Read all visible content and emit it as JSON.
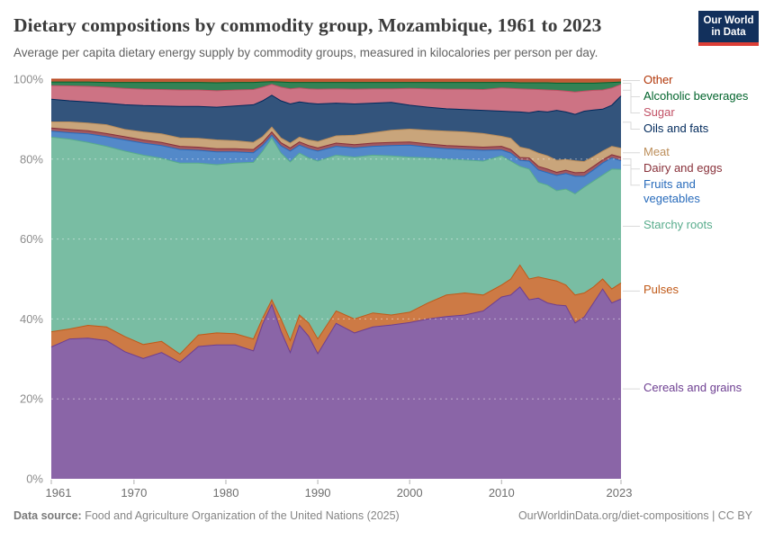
{
  "header": {
    "title": "Dietary compositions by commodity group, Mozambique, 1961 to 2023",
    "subtitle": "Average per capita dietary energy supply by commodity groups, measured in kilocalories per person per day."
  },
  "logo": {
    "line1": "Our World",
    "line2": "in Data",
    "bg_color": "#12305c",
    "bar_color": "#dc3e36"
  },
  "chart_data": {
    "type": "area",
    "stacked": true,
    "normalized_to_percent": true,
    "title": "Dietary compositions by commodity group, Mozambique, 1961 to 2023",
    "xlabel": "",
    "ylabel": "",
    "x": [
      1961,
      1963,
      1965,
      1967,
      1969,
      1971,
      1973,
      1975,
      1977,
      1979,
      1981,
      1983,
      1984,
      1985,
      1986,
      1987,
      1988,
      1989,
      1990,
      1992,
      1994,
      1996,
      1998,
      2000,
      2002,
      2004,
      2006,
      2008,
      2010,
      2011,
      2012,
      2013,
      2014,
      2015,
      2016,
      2017,
      2018,
      2019,
      2020,
      2021,
      2022,
      2023
    ],
    "series": [
      {
        "id": "cereals-and-grains",
        "label": "Cereals and grains",
        "color": "#6d3e91",
        "values": [
          33.0,
          35.0,
          35.2,
          34.6,
          31.8,
          30.1,
          31.6,
          29.1,
          33.1,
          33.5,
          33.5,
          32.0,
          38.7,
          43.6,
          36.9,
          31.6,
          38.4,
          35.7,
          31.3,
          38.9,
          36.5,
          38.0,
          38.5,
          39.1,
          40.0,
          40.6,
          41.0,
          42.0,
          45.5,
          46.0,
          48.0,
          44.8,
          45.2,
          44.0,
          43.5,
          43.3,
          39.0,
          40.5,
          44.0,
          47.5,
          44.0,
          45.0
        ]
      },
      {
        "id": "pulses",
        "label": "Pulses",
        "color": "#c05917",
        "values": [
          3.8,
          2.5,
          3.2,
          3.4,
          3.8,
          3.5,
          2.8,
          2.1,
          2.9,
          3.0,
          2.8,
          3.0,
          1.5,
          1.2,
          3.1,
          3.0,
          2.6,
          3.3,
          3.7,
          3.1,
          3.5,
          3.5,
          2.5,
          2.6,
          4.0,
          5.4,
          5.5,
          4.0,
          3.0,
          4.0,
          5.5,
          5.2,
          5.3,
          6.0,
          6.0,
          5.2,
          7.0,
          6.0,
          4.0,
          2.5,
          3.5,
          4.0
        ]
      },
      {
        "id": "starchy-roots",
        "label": "Starchy roots",
        "color": "#58ac8c",
        "values": [
          48.7,
          47.5,
          45.8,
          45.2,
          46.4,
          47.4,
          45.8,
          47.8,
          43.0,
          42.1,
          42.7,
          44.2,
          41.8,
          40.5,
          41.5,
          44.7,
          40.5,
          41.3,
          44.5,
          39.0,
          40.5,
          39.5,
          39.8,
          38.8,
          36.3,
          34.0,
          33.3,
          33.5,
          32.3,
          29.5,
          24.7,
          27.5,
          23.7,
          23.5,
          22.6,
          24.0,
          25.3,
          26.5,
          26.5,
          26.0,
          30.0,
          28.4
        ]
      },
      {
        "id": "fruits-and-vegetables",
        "label": "Fruits and vegetables",
        "color": "#286bbb",
        "values": [
          1.5,
          1.6,
          2.1,
          2.4,
          2.8,
          3.0,
          3.2,
          3.4,
          3.2,
          3.2,
          2.8,
          2.4,
          1.4,
          0.7,
          1.8,
          2.7,
          2.0,
          2.3,
          2.5,
          2.2,
          2.3,
          2.2,
          2.6,
          3.0,
          2.7,
          2.6,
          2.6,
          2.7,
          1.5,
          2.0,
          1.5,
          2.0,
          3.1,
          3.1,
          3.8,
          3.9,
          4.4,
          2.7,
          2.8,
          3.0,
          2.8,
          2.2
        ]
      },
      {
        "id": "dairy-and-eggs",
        "label": "Dairy and eggs",
        "color": "#883039",
        "values": [
          0.8,
          0.8,
          0.8,
          0.8,
          0.8,
          0.8,
          0.8,
          0.8,
          0.8,
          0.8,
          0.8,
          0.8,
          0.8,
          0.8,
          0.8,
          0.8,
          0.8,
          0.8,
          0.8,
          0.8,
          0.8,
          0.8,
          0.8,
          0.8,
          0.8,
          0.8,
          0.8,
          0.8,
          0.9,
          0.9,
          0.7,
          0.8,
          0.9,
          0.9,
          0.8,
          0.8,
          0.9,
          1.0,
          0.9,
          0.8,
          0.8,
          0.9
        ]
      },
      {
        "id": "meat",
        "label": "Meat",
        "color": "#bc8e5a",
        "values": [
          1.5,
          1.9,
          1.9,
          2.2,
          1.8,
          2.0,
          2.1,
          2.1,
          2.2,
          2.2,
          2.0,
          1.8,
          1.4,
          1.2,
          1.2,
          1.2,
          1.2,
          1.4,
          1.6,
          1.8,
          2.4,
          2.6,
          3.0,
          3.2,
          3.4,
          3.6,
          3.6,
          3.4,
          2.5,
          2.8,
          2.6,
          2.2,
          3.3,
          3.3,
          3.0,
          2.7,
          3.0,
          2.7,
          2.4,
          2.2,
          2.1,
          2.2
        ]
      },
      {
        "id": "oils-and-fats",
        "label": "Oils and fats",
        "color": "#00295b",
        "values": [
          5.7,
          5.3,
          5.3,
          5.4,
          6.2,
          6.6,
          7.0,
          7.9,
          8.0,
          8.2,
          8.7,
          9.4,
          9.0,
          8.0,
          9.3,
          9.8,
          8.8,
          9.2,
          9.4,
          8.2,
          7.8,
          7.4,
          7.0,
          6.0,
          5.8,
          5.6,
          5.6,
          5.8,
          6.3,
          6.7,
          8.8,
          9.1,
          10.5,
          11.0,
          12.5,
          11.9,
          11.6,
          12.6,
          11.7,
          10.5,
          10.3,
          13.1
        ]
      },
      {
        "id": "sugar",
        "label": "Sugar",
        "color": "#c15065",
        "values": [
          3.4,
          3.7,
          3.9,
          4.0,
          4.1,
          4.1,
          4.1,
          4.1,
          4.1,
          4.1,
          4.0,
          3.8,
          3.4,
          2.7,
          3.4,
          3.8,
          3.5,
          3.6,
          3.7,
          3.6,
          3.7,
          3.6,
          3.4,
          4.2,
          4.6,
          4.9,
          5.1,
          5.2,
          5.8,
          5.8,
          5.8,
          5.9,
          5.4,
          5.5,
          5.0,
          5.2,
          5.6,
          5.0,
          4.9,
          4.8,
          4.3,
          2.9
        ]
      },
      {
        "id": "alcoholic-beverages",
        "label": "Alcoholic beverages",
        "color": "#00632b",
        "values": [
          0.9,
          1.0,
          1.1,
          1.2,
          1.5,
          1.7,
          1.8,
          1.9,
          1.9,
          2.0,
          1.9,
          1.8,
          1.3,
          0.7,
          1.3,
          1.6,
          1.4,
          1.6,
          1.7,
          1.6,
          1.7,
          1.6,
          1.6,
          1.5,
          1.6,
          1.7,
          1.7,
          1.8,
          1.4,
          1.5,
          1.5,
          1.6,
          1.7,
          1.8,
          1.8,
          2.0,
          2.2,
          2.0,
          1.8,
          1.8,
          1.4,
          0.6
        ]
      },
      {
        "id": "other",
        "label": "Other",
        "color": "#b13507",
        "values": [
          0.7,
          0.7,
          0.7,
          0.8,
          0.8,
          0.8,
          0.8,
          0.8,
          0.8,
          0.9,
          0.8,
          0.8,
          0.7,
          0.6,
          0.7,
          0.8,
          0.8,
          0.8,
          0.8,
          0.8,
          0.8,
          0.8,
          0.8,
          0.8,
          0.8,
          0.8,
          0.8,
          0.8,
          0.8,
          0.8,
          0.9,
          0.9,
          0.9,
          0.9,
          1.0,
          1.0,
          1.0,
          1.0,
          1.0,
          0.9,
          0.8,
          0.7
        ]
      }
    ],
    "y_axis": {
      "ticks": [
        0,
        20,
        40,
        60,
        80,
        100
      ],
      "tick_labels": [
        "0%",
        "20%",
        "40%",
        "60%",
        "80%",
        "100%"
      ],
      "ylim": [
        0,
        100
      ],
      "grid": true
    },
    "x_axis": {
      "ticks": [
        1961,
        1970,
        1980,
        1990,
        2000,
        2010,
        2023
      ],
      "tick_labels": [
        "1961",
        "1970",
        "1980",
        "1990",
        "2000",
        "2010",
        "2023"
      ]
    },
    "legend_position": "right"
  },
  "footer": {
    "source_label": "Data source:",
    "source_text": " Food and Agriculture Organization of the United Nations (2025)",
    "right_text": "OurWorldinData.org/diet-compositions | CC BY"
  }
}
